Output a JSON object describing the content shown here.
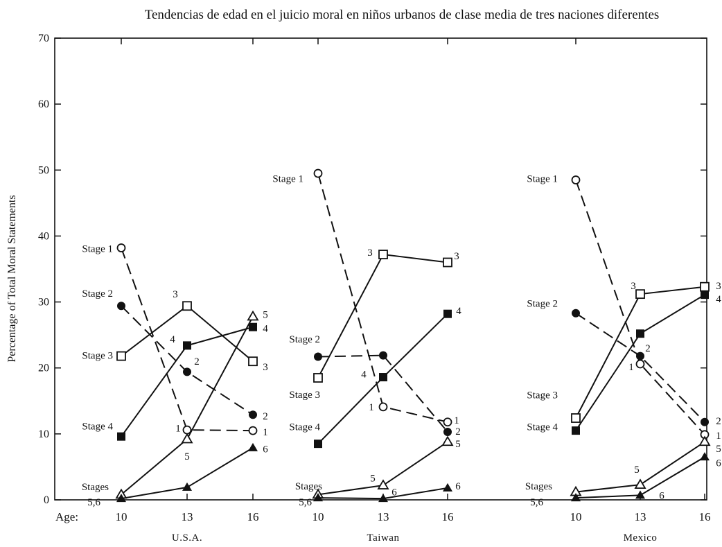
{
  "chart_data": {
    "type": "line",
    "title": "Tendencias de edad en el juicio moral en niños urbanos de clase media de tres naciones diferentes",
    "ylabel": "Percentage of Total Moral Statements",
    "xlabel": "Age:",
    "ylim": [
      0,
      70
    ],
    "yticks": [
      "0",
      "10",
      "20",
      "30",
      "40",
      "50",
      "60",
      "70"
    ],
    "grid": false,
    "panels": [
      {
        "name": "U.S.A.",
        "ages": [
          "10",
          "13",
          "16"
        ],
        "series": [
          {
            "stage": "1",
            "marker": "open-circle",
            "line": "dashed",
            "values": [
              38.2,
              10.6,
              10.5
            ]
          },
          {
            "stage": "2",
            "marker": "filled-circle",
            "line": "dashed",
            "values": [
              29.4,
              19.4,
              12.9
            ]
          },
          {
            "stage": "3",
            "marker": "open-square",
            "line": "solid",
            "values": [
              21.8,
              29.4,
              21.0
            ]
          },
          {
            "stage": "4",
            "marker": "filled-square",
            "line": "solid",
            "values": [
              9.6,
              23.4,
              26.2
            ]
          },
          {
            "stage": "5",
            "marker": "open-triangle",
            "line": "solid",
            "values": [
              0.8,
              9.2,
              27.8
            ]
          },
          {
            "stage": "6",
            "marker": "filled-triangle",
            "line": "solid",
            "values": [
              0.2,
              1.9,
              7.9
            ]
          }
        ],
        "left_labels": [
          "Stage 1",
          "Stage 2",
          "Stage 3",
          "Stage 4",
          "Stages",
          "5,6"
        ],
        "point_labels": [
          "3",
          "4",
          "2",
          "1",
          "5",
          "5",
          "4",
          "3",
          "2",
          "1",
          "6"
        ]
      },
      {
        "name": "Taiwan",
        "ages": [
          "10",
          "13",
          "16"
        ],
        "series": [
          {
            "stage": "1",
            "marker": "open-circle",
            "line": "dashed",
            "values": [
              49.5,
              14.1,
              11.8
            ]
          },
          {
            "stage": "2",
            "marker": "filled-circle",
            "line": "dashed",
            "values": [
              21.7,
              21.9,
              10.3
            ]
          },
          {
            "stage": "3",
            "marker": "open-square",
            "line": "solid",
            "values": [
              18.5,
              37.2,
              36.0
            ]
          },
          {
            "stage": "4",
            "marker": "filled-square",
            "line": "solid",
            "values": [
              8.5,
              18.6,
              28.2
            ]
          },
          {
            "stage": "5",
            "marker": "open-triangle",
            "line": "solid",
            "values": [
              0.8,
              2.2,
              8.8
            ]
          },
          {
            "stage": "6",
            "marker": "filled-triangle",
            "line": "solid",
            "values": [
              0.3,
              0.2,
              1.8
            ]
          }
        ],
        "left_labels": [
          "Stage 1",
          "Stage 2",
          "Stage 3",
          "Stage 4",
          "Stages",
          "5,6"
        ],
        "point_labels": [
          "3",
          "4",
          "1",
          "5",
          "6",
          "3",
          "4",
          "1",
          "2",
          "5",
          "6"
        ]
      },
      {
        "name": "Mexico",
        "ages": [
          "10",
          "13",
          "16"
        ],
        "series": [
          {
            "stage": "1",
            "marker": "open-circle",
            "line": "dashed",
            "values": [
              48.5,
              20.6,
              9.9
            ]
          },
          {
            "stage": "2",
            "marker": "filled-circle",
            "line": "dashed",
            "values": [
              28.3,
              21.8,
              11.8
            ]
          },
          {
            "stage": "3",
            "marker": "open-square",
            "line": "solid",
            "values": [
              12.4,
              31.2,
              32.3
            ]
          },
          {
            "stage": "4",
            "marker": "filled-square",
            "line": "solid",
            "values": [
              10.5,
              25.2,
              31.1
            ]
          },
          {
            "stage": "5",
            "marker": "open-triangle",
            "line": "solid",
            "values": [
              1.2,
              2.3,
              8.8
            ]
          },
          {
            "stage": "6",
            "marker": "filled-triangle",
            "line": "solid",
            "values": [
              0.3,
              0.7,
              6.5
            ]
          }
        ],
        "left_labels": [
          "Stage 1",
          "Stage 2",
          "Stage 3",
          "Stage 4",
          "Stages",
          "5,6"
        ],
        "point_labels": [
          "3",
          "2",
          "1",
          "5",
          "6",
          "3",
          "4",
          "2",
          "1",
          "5",
          "6"
        ]
      }
    ]
  }
}
